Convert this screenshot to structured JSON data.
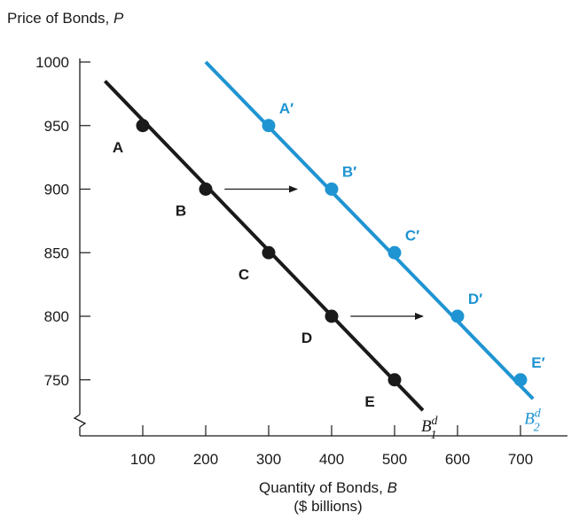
{
  "chart_data": {
    "type": "line",
    "ylabel": {
      "text": "Price of Bonds, ",
      "var": "P"
    },
    "xlabel": {
      "text": "Quantity of Bonds, ",
      "var": "B",
      "line2": "($ billions)"
    },
    "xlim": [
      0,
      750
    ],
    "ylim": [
      720,
      1000
    ],
    "x_ticks": [
      100,
      200,
      300,
      400,
      500,
      600,
      700
    ],
    "y_ticks": [
      750,
      800,
      850,
      900,
      950,
      1000
    ],
    "grid": false,
    "axis_break": "y",
    "series": [
      {
        "name": {
          "main": "B",
          "sup": "d",
          "sub": "1"
        },
        "color": "#1a1a1a",
        "line": {
          "x": [
            40,
            545
          ],
          "y": [
            985,
            726
          ]
        },
        "points": [
          {
            "label": "A",
            "x": 100,
            "y": 950
          },
          {
            "label": "B",
            "x": 200,
            "y": 900
          },
          {
            "label": "C",
            "x": 300,
            "y": 850
          },
          {
            "label": "D",
            "x": 400,
            "y": 800
          },
          {
            "label": "E",
            "x": 500,
            "y": 750
          }
        ]
      },
      {
        "name": {
          "main": "B",
          "sup": "d",
          "sub": "2"
        },
        "color": "#1f94d2",
        "line": {
          "x": [
            200,
            720
          ],
          "y": [
            1000,
            735
          ]
        },
        "points": [
          {
            "label": "A′",
            "x": 300,
            "y": 950
          },
          {
            "label": "B′",
            "x": 400,
            "y": 900
          },
          {
            "label": "C′",
            "x": 500,
            "y": 850
          },
          {
            "label": "D′",
            "x": 600,
            "y": 800
          },
          {
            "label": "E′",
            "x": 700,
            "y": 750
          }
        ]
      }
    ],
    "arrows": [
      {
        "from": [
          230,
          900
        ],
        "to": [
          345,
          900
        ]
      },
      {
        "from": [
          430,
          800
        ],
        "to": [
          545,
          800
        ]
      }
    ]
  }
}
